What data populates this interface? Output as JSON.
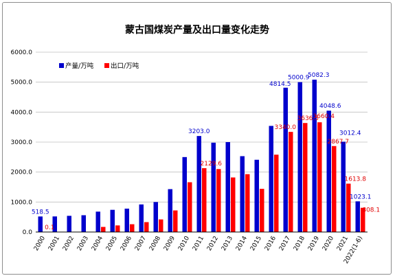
{
  "colors": {
    "production": "#0000cc",
    "export": "#ff0000",
    "grid": "#bfbfbf",
    "axis": "#000000"
  },
  "chart_data": {
    "type": "bar",
    "title": "蒙古国煤炭产量及出口量变化走势",
    "xlabel": "",
    "ylabel": "",
    "ylim": [
      0,
      6000
    ],
    "yticks": [
      "0.0",
      "1000.0",
      "2000.0",
      "3000.0",
      "4000.0",
      "5000.0",
      "6000.0"
    ],
    "ytick_values": [
      0,
      1000,
      2000,
      3000,
      4000,
      5000,
      6000
    ],
    "grid": true,
    "legend_position": "top-left",
    "categories": [
      "2000",
      "2001",
      "2002",
      "2003",
      "2004",
      "2005",
      "2006",
      "2007",
      "2008",
      "2009",
      "2010",
      "2011",
      "2012",
      "2013",
      "2014",
      "2015",
      "2016",
      "2017",
      "2018",
      "2019",
      "2020",
      "2021",
      "2022(1-6)"
    ],
    "series": [
      {
        "name": "产量/万吨",
        "color": "#0000cc",
        "values": [
          518.5,
          520,
          540,
          560,
          680,
          740,
          780,
          920,
          1000,
          1430,
          2500,
          3203.0,
          2980,
          3000,
          2530,
          2410,
          3540,
          4814.5,
          5000.9,
          5082.3,
          4048.6,
          3012.4,
          1023.1
        ],
        "labels": [
          "518.5",
          "",
          "",
          "",
          "",
          "",
          "",
          "",
          "",
          "",
          "",
          "3203.0",
          "",
          "",
          "",
          "",
          "",
          "4814.5",
          "5000.9",
          "5082.3",
          "4048.6",
          "3012.4",
          "1023.1"
        ]
      },
      {
        "name": "出口/万吨",
        "color": "#ff0000",
        "values": [
          0.1,
          0,
          0,
          5,
          170,
          220,
          260,
          330,
          420,
          720,
          1660,
          2129.6,
          2100,
          1820,
          1930,
          1440,
          2580,
          3340.0,
          3636.5,
          3660.4,
          2867.7,
          1613.8,
          808.1
        ],
        "labels": [
          "0.1",
          "",
          "",
          "",
          "",
          "",
          "",
          "",
          "",
          "",
          "",
          "2129.6",
          "",
          "",
          "",
          "",
          "",
          "3340.0",
          "3636.5",
          "3660.4",
          "2867.7",
          "1613.8",
          "808.1"
        ]
      }
    ]
  }
}
